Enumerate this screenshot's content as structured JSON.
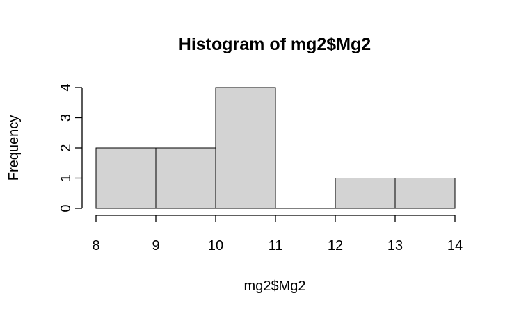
{
  "chart_data": {
    "type": "bar",
    "subtype": "histogram",
    "title": "Histogram of mg2$Mg2",
    "xlabel": "mg2$Mg2",
    "ylabel": "Frequency",
    "bins": [
      {
        "start": 8,
        "end": 9,
        "count": 2
      },
      {
        "start": 9,
        "end": 10,
        "count": 2
      },
      {
        "start": 10,
        "end": 11,
        "count": 4
      },
      {
        "start": 11,
        "end": 12,
        "count": 0
      },
      {
        "start": 12,
        "end": 13,
        "count": 1
      },
      {
        "start": 13,
        "end": 14,
        "count": 1
      }
    ],
    "xlim": [
      8,
      14
    ],
    "ylim": [
      0,
      4
    ],
    "x_ticks": [
      "8",
      "9",
      "10",
      "11",
      "12",
      "13",
      "14"
    ],
    "y_ticks": [
      "0",
      "1",
      "2",
      "3",
      "4"
    ],
    "grid": false,
    "legend": "none",
    "bar_color": "#d3d3d3",
    "edge_color": "#000000"
  }
}
